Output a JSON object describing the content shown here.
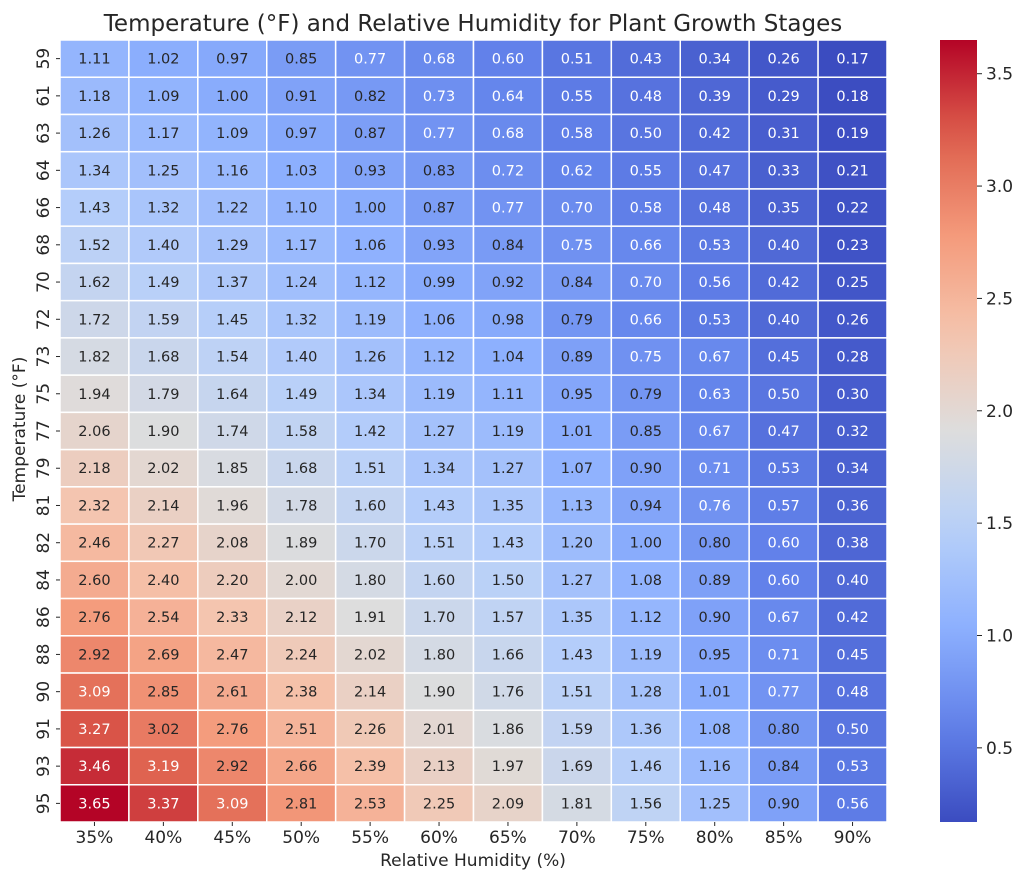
{
  "chart_data": {
    "type": "heatmap",
    "title": "Temperature (°F) and Relative Humidity for Plant Growth Stages",
    "xlabel": "Relative Humidity (%)",
    "ylabel": "Temperature (°F)",
    "x_categories": [
      "35%",
      "40%",
      "45%",
      "50%",
      "55%",
      "60%",
      "65%",
      "70%",
      "75%",
      "80%",
      "85%",
      "90%"
    ],
    "y_categories": [
      "59",
      "61",
      "63",
      "64",
      "66",
      "68",
      "70",
      "72",
      "73",
      "75",
      "77",
      "79",
      "81",
      "82",
      "84",
      "86",
      "88",
      "90",
      "91",
      "93",
      "95"
    ],
    "values": [
      [
        1.11,
        1.02,
        0.97,
        0.85,
        0.77,
        0.68,
        0.6,
        0.51,
        0.43,
        0.34,
        0.26,
        0.17
      ],
      [
        1.18,
        1.09,
        1.0,
        0.91,
        0.82,
        0.73,
        0.64,
        0.55,
        0.48,
        0.39,
        0.29,
        0.18
      ],
      [
        1.26,
        1.17,
        1.09,
        0.97,
        0.87,
        0.77,
        0.68,
        0.58,
        0.5,
        0.42,
        0.31,
        0.19
      ],
      [
        1.34,
        1.25,
        1.16,
        1.03,
        0.93,
        0.83,
        0.72,
        0.62,
        0.55,
        0.47,
        0.33,
        0.21
      ],
      [
        1.43,
        1.32,
        1.22,
        1.1,
        1.0,
        0.87,
        0.77,
        0.7,
        0.58,
        0.48,
        0.35,
        0.22
      ],
      [
        1.52,
        1.4,
        1.29,
        1.17,
        1.06,
        0.93,
        0.84,
        0.75,
        0.66,
        0.53,
        0.4,
        0.23
      ],
      [
        1.62,
        1.49,
        1.37,
        1.24,
        1.12,
        0.99,
        0.92,
        0.84,
        0.7,
        0.56,
        0.42,
        0.25
      ],
      [
        1.72,
        1.59,
        1.45,
        1.32,
        1.19,
        1.06,
        0.98,
        0.79,
        0.66,
        0.53,
        0.4,
        0.26
      ],
      [
        1.82,
        1.68,
        1.54,
        1.4,
        1.26,
        1.12,
        1.04,
        0.89,
        0.75,
        0.67,
        0.45,
        0.28
      ],
      [
        1.94,
        1.79,
        1.64,
        1.49,
        1.34,
        1.19,
        1.11,
        0.95,
        0.79,
        0.63,
        0.5,
        0.3
      ],
      [
        2.06,
        1.9,
        1.74,
        1.58,
        1.42,
        1.27,
        1.19,
        1.01,
        0.85,
        0.67,
        0.47,
        0.32
      ],
      [
        2.18,
        2.02,
        1.85,
        1.68,
        1.51,
        1.34,
        1.27,
        1.07,
        0.9,
        0.71,
        0.53,
        0.34
      ],
      [
        2.32,
        2.14,
        1.96,
        1.78,
        1.6,
        1.43,
        1.35,
        1.13,
        0.94,
        0.76,
        0.57,
        0.36
      ],
      [
        2.46,
        2.27,
        2.08,
        1.89,
        1.7,
        1.51,
        1.43,
        1.2,
        1.0,
        0.8,
        0.6,
        0.38
      ],
      [
        2.6,
        2.4,
        2.2,
        2.0,
        1.8,
        1.6,
        1.5,
        1.27,
        1.08,
        0.89,
        0.6,
        0.4
      ],
      [
        2.76,
        2.54,
        2.33,
        2.12,
        1.91,
        1.7,
        1.57,
        1.35,
        1.12,
        0.9,
        0.67,
        0.42
      ],
      [
        2.92,
        2.69,
        2.47,
        2.24,
        2.02,
        1.8,
        1.66,
        1.43,
        1.19,
        0.95,
        0.71,
        0.45
      ],
      [
        3.09,
        2.85,
        2.61,
        2.38,
        2.14,
        1.9,
        1.76,
        1.51,
        1.28,
        1.01,
        0.77,
        0.48
      ],
      [
        3.27,
        3.02,
        2.76,
        2.51,
        2.26,
        2.01,
        1.86,
        1.59,
        1.36,
        1.08,
        0.8,
        0.5
      ],
      [
        3.46,
        3.19,
        2.92,
        2.66,
        2.39,
        2.13,
        1.97,
        1.69,
        1.46,
        1.16,
        0.84,
        0.53
      ],
      [
        3.65,
        3.37,
        3.09,
        2.81,
        2.53,
        2.25,
        2.09,
        1.81,
        1.56,
        1.25,
        0.9,
        0.56
      ]
    ],
    "colormap": "coolwarm",
    "value_range": [
      0.17,
      3.65
    ],
    "colorbar_ticks": [
      "0.5",
      "1.0",
      "1.5",
      "2.0",
      "2.5",
      "3.0",
      "3.5"
    ],
    "value_format": "2 decimals",
    "grid": "white cell borders",
    "colorbar_placement": "right"
  }
}
